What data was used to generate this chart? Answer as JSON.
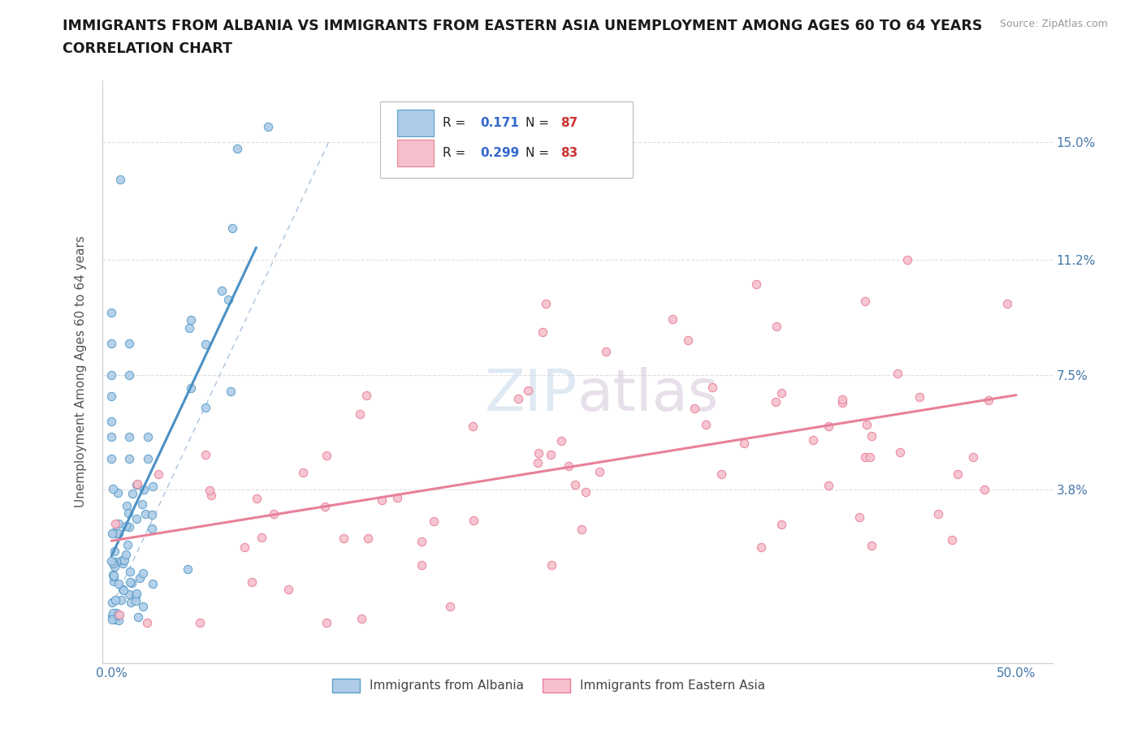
{
  "title_line1": "IMMIGRANTS FROM ALBANIA VS IMMIGRANTS FROM EASTERN ASIA UNEMPLOYMENT AMONG AGES 60 TO 64 YEARS",
  "title_line2": "CORRELATION CHART",
  "source": "Source: ZipAtlas.com",
  "ylabel": "Unemployment Among Ages 60 to 64 years",
  "xlim": [
    -0.005,
    0.52
  ],
  "ylim": [
    -0.018,
    0.17
  ],
  "xticks": [
    0.0,
    0.1,
    0.2,
    0.3,
    0.4,
    0.5
  ],
  "xticklabels": [
    "0.0%",
    "",
    "",
    "",
    "",
    "50.0%"
  ],
  "ytick_positions": [
    0.0,
    0.038,
    0.075,
    0.112,
    0.15
  ],
  "ytick_labels": [
    "",
    "3.8%",
    "7.5%",
    "11.2%",
    "15.0%"
  ],
  "albania_color": "#aecce8",
  "albania_edge": "#5b9ec9",
  "albania_line_color": "#4a90c4",
  "eastern_asia_color": "#f5c0cc",
  "eastern_asia_edge": "#e8809a",
  "eastern_asia_line_color": "#e8809a",
  "albania_R": 0.171,
  "albania_N": 87,
  "eastern_asia_R": 0.299,
  "eastern_asia_N": 83,
  "background_color": "#ffffff",
  "grid_color": "#e0e0e0",
  "title_color": "#1a1a1a",
  "axis_color": "#4477aa",
  "ylabel_color": "#555555"
}
